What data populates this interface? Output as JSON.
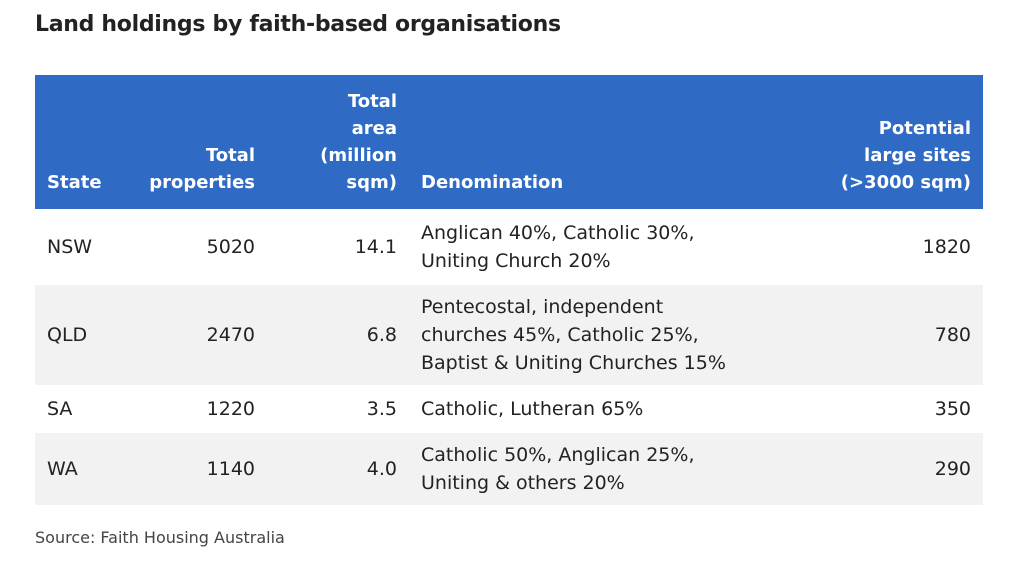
{
  "title": "Land holdings by faith-based organisations",
  "source": "Source: Faith Housing Australia",
  "colors": {
    "header_bg": "#2f6bc4",
    "header_text": "#ffffff",
    "stripe": "#f2f2f2"
  },
  "chart_data": {
    "type": "table",
    "title": "Land holdings by faith-based organisations",
    "columns": [
      "State",
      "Total\nproperties",
      "Total\narea\n(million\nsqm)",
      "Denomination",
      "Potential\nlarge sites\n(>3000 sqm)"
    ],
    "rows": [
      [
        "NSW",
        "5020",
        "14.1",
        "Anglican 40%, Catholic 30%,\nUniting Church 20%",
        "1820"
      ],
      [
        "QLD",
        "2470",
        "6.8",
        "Pentecostal, independent\nchurches 45%, Catholic 25%,\nBaptist & Uniting Churches 15%",
        "780"
      ],
      [
        "SA",
        "1220",
        "3.5",
        "Catholic, Lutheran 65%",
        "350"
      ],
      [
        "WA",
        "1140",
        "4.0",
        "Catholic 50%, Anglican 25%,\nUniting & others 20%",
        "290"
      ]
    ],
    "source": "Source: Faith Housing Australia"
  }
}
